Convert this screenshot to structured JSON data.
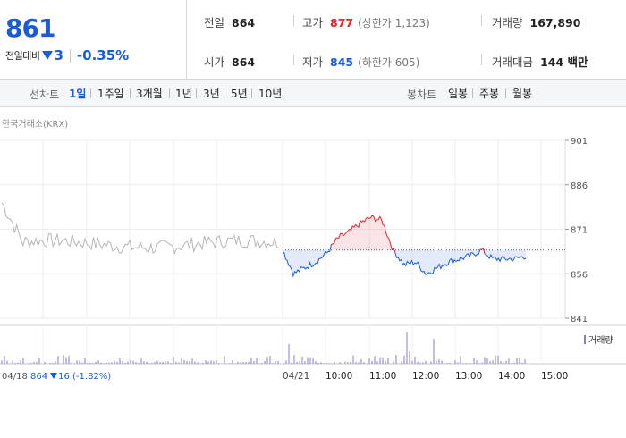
{
  "quote": {
    "price": "861",
    "change_label": "전일대비",
    "change_value": "3",
    "change_rate": "-0.35%"
  },
  "stats": {
    "prev_close": {
      "label": "전일",
      "value": "864"
    },
    "open": {
      "label": "시가",
      "value": "864"
    },
    "high": {
      "label": "고가",
      "value": "877",
      "limit_label": "(상한가 1,123)"
    },
    "low": {
      "label": "저가",
      "value": "845",
      "limit_label": "(하한가 605)"
    },
    "volume": {
      "label": "거래량",
      "value": "167,890"
    },
    "amount": {
      "label": "거래대금",
      "value": "144 백만"
    }
  },
  "toolbar": {
    "line_label": "선차트",
    "periods": [
      "1일",
      "1주일",
      "3개월",
      "1년",
      "3년",
      "5년",
      "10년"
    ],
    "selected_period": "1일",
    "candle_label": "봉차트",
    "candles": [
      "일봉",
      "주봉",
      "월봉"
    ]
  },
  "chart": {
    "source": "한국거래소(KRX)",
    "volume_legend": "거래량",
    "prev_day": {
      "date": "04/18",
      "price": "864",
      "change": "16",
      "rate": "(-1.82%)"
    },
    "x_ticks": [
      "04/21",
      "10:00",
      "11:00",
      "12:00",
      "13:00",
      "14:00",
      "15:00"
    ],
    "colors": {
      "up": "#e0222b",
      "down": "#1a5bd6",
      "prev": "#b5b5b5",
      "volume": "#8e7bc7"
    }
  },
  "chart_data": {
    "type": "line",
    "y_ticks": [
      "901",
      "886",
      "871",
      "856",
      "841"
    ],
    "ylim": [
      841,
      901
    ],
    "baseline": 864,
    "series": [
      {
        "name": "",
        "x": [
          "04/18 AM",
          "04/18 PM",
          "04/21 09:00",
          "04/21 09:15",
          "04/21 09:30",
          "04/21 09:45",
          "04/21 10:00",
          "04/21 10:15",
          "04/21 10:30",
          "04/21 10:45",
          "04/21 11:00",
          "04/21 11:15",
          "04/21 11:30",
          "04/21 11:45",
          "04/21 12:00",
          "04/21 12:15",
          "04/21 12:30",
          "04/21 12:45",
          "04/21 13:00",
          "04/21 13:15",
          "04/21 13:30",
          "04/21 13:45",
          "04/21 14:00",
          "04/21 14:15",
          "04/21 14:30"
        ],
        "values": [
          880,
          866,
          864,
          856,
          858,
          860,
          863,
          868,
          870,
          873,
          875,
          874,
          864,
          859,
          860,
          856,
          858,
          860,
          861,
          862,
          864,
          861,
          861,
          861,
          862
        ]
      }
    ]
  }
}
